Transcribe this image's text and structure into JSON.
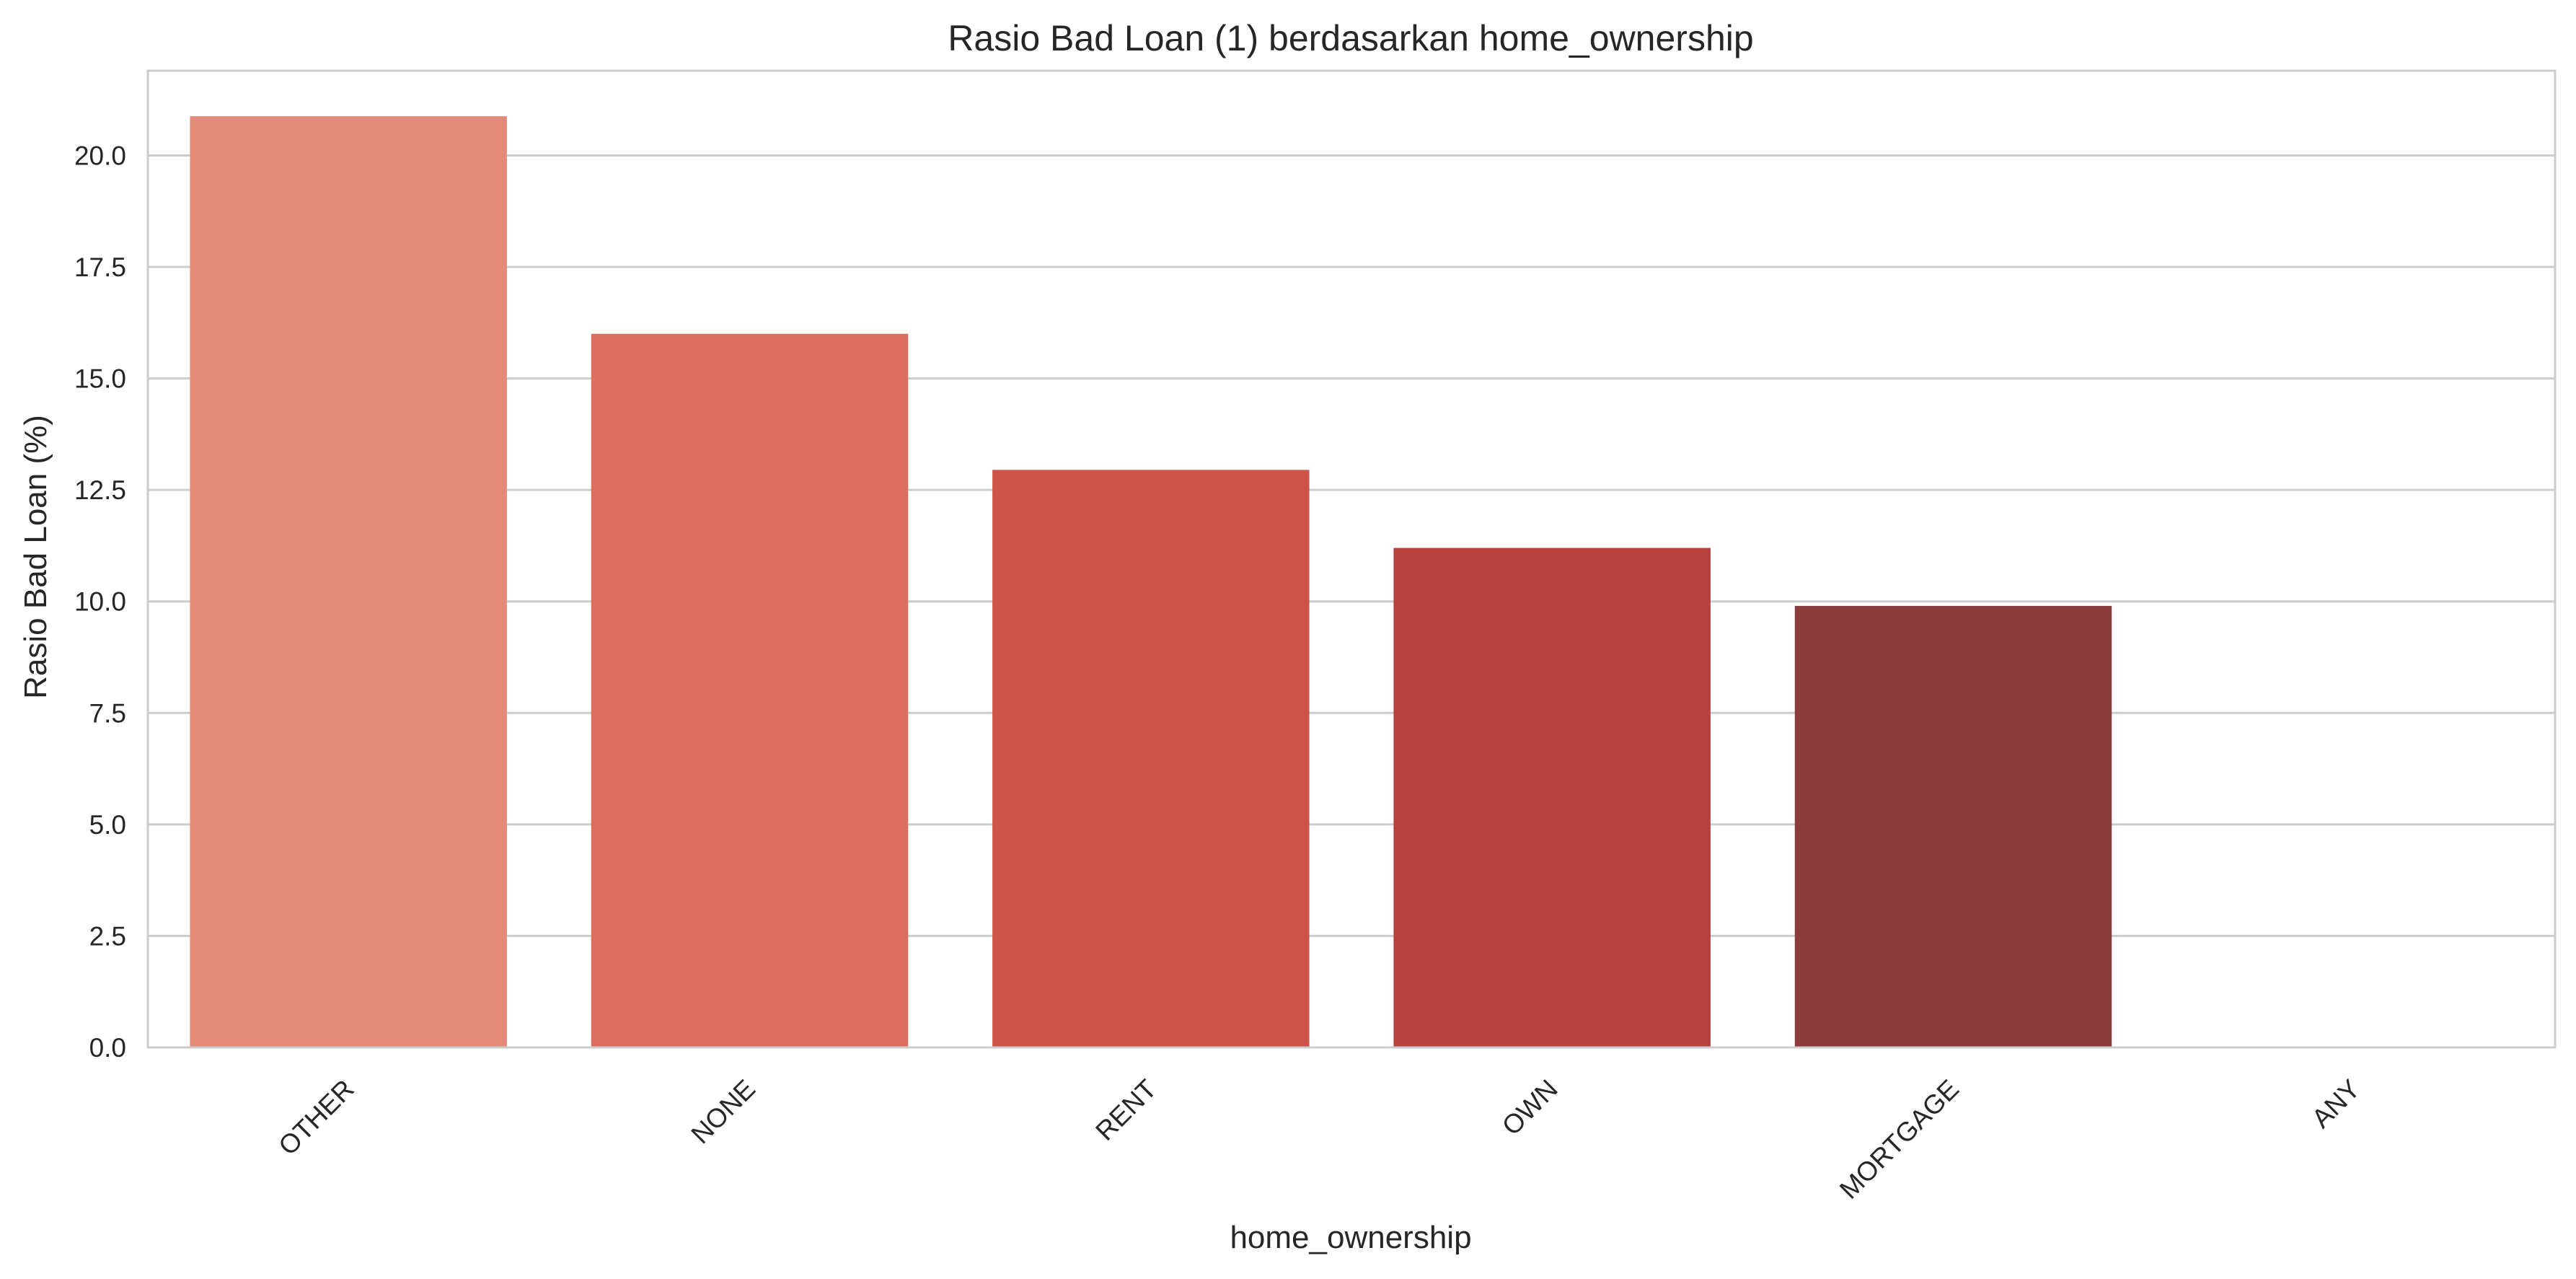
{
  "chart_data": {
    "type": "bar",
    "title": "Rasio Bad Loan (1) berdasarkan home_ownership",
    "xlabel": "home_ownership",
    "ylabel": "Rasio Bad Loan (%)",
    "categories": [
      "OTHER",
      "NONE",
      "RENT",
      "OWN",
      "MORTGAGE",
      "ANY"
    ],
    "values": [
      20.88,
      16.0,
      12.95,
      11.2,
      9.9,
      0.0
    ],
    "colors": [
      "#e38b78",
      "#dc6e61",
      "#cd5449",
      "#b6413d",
      "#8a3b3b",
      "#6e2b2b"
    ],
    "ylim": [
      0,
      21.9
    ],
    "yticks": [
      0,
      2.5,
      5,
      7.5,
      10,
      12.5,
      15,
      17.5,
      20
    ],
    "ytick_labels": [
      "0.0",
      "2.5",
      "5.0",
      "7.5",
      "10.0",
      "12.5",
      "15.0",
      "17.5",
      "20.0"
    ],
    "grid": "horizontal",
    "legend": "none"
  }
}
